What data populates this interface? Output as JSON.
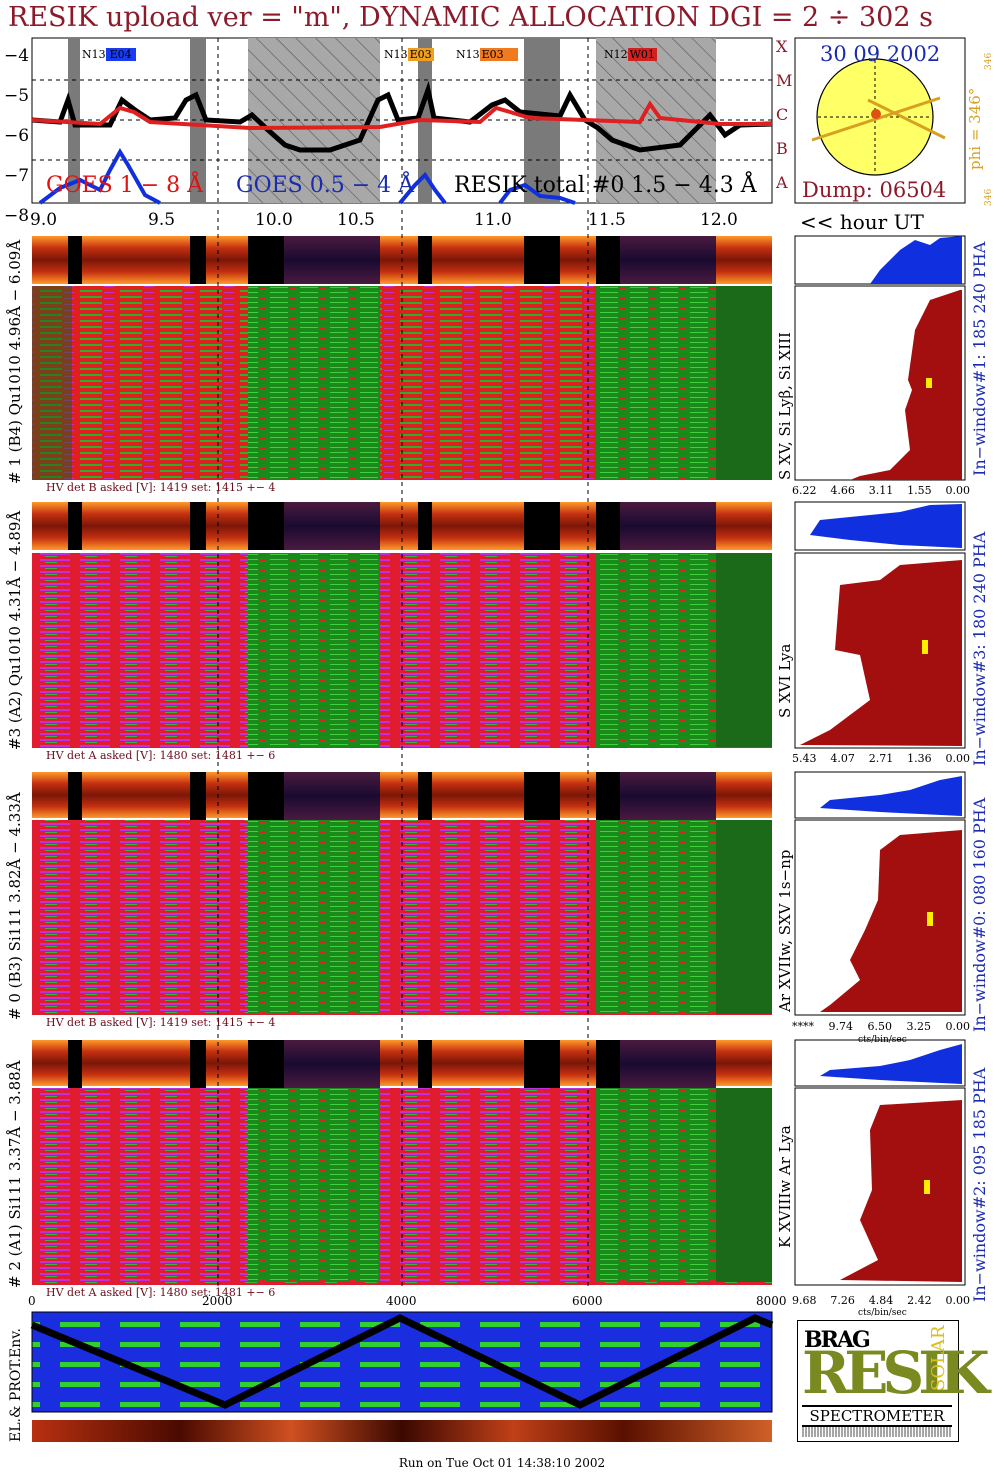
{
  "title": "RESIK upload ver = \"m\", DYNAMIC ALLOCATION  DGI =   2 ÷ 302 s",
  "colors": {
    "goes_long": "#e02020",
    "goes_short": "#1030e0",
    "resik_total": "#000000",
    "hist": "#a30f0f",
    "hist_blue": "#1030e0",
    "maroon": "#8b1a2b"
  },
  "lightcurve": {
    "yticks": [
      "−4",
      "−5",
      "−6",
      "−7",
      "−8"
    ],
    "class_letters": [
      "X",
      "M",
      "C",
      "B",
      "A"
    ],
    "legend_goes_long": "GOES 1 − 8 Å",
    "legend_goes_short": "GOES 0.5 − 4 Å",
    "legend_resik": "RESIK total #0   1.5 − 4.3 Å",
    "region_labels": [
      {
        "prefix": "N13",
        "suffix": "E04",
        "color": "#1a3cf0"
      },
      {
        "prefix": "N13",
        "suffix": "E03",
        "color": "#f0a020"
      },
      {
        "prefix": "N13",
        "suffix": "E03",
        "color": "#f07a20"
      },
      {
        "prefix": "N12",
        "suffix": "W01",
        "color": "#d02020"
      }
    ]
  },
  "time_axis": {
    "ticks": [
      "9.0",
      "9.5",
      "10.0",
      "10.5",
      "11.0",
      "11.5",
      "12.0"
    ],
    "unit_label": "<< hour UT"
  },
  "sun": {
    "date": "30 09 2002",
    "dump": "Dump: 06504",
    "phi_label": "phi = 346°",
    "phi_small": "346",
    "phi_small2": "346"
  },
  "panels": [
    {
      "left_label": "# 1 (B4) Qu1010  4.96Å − 6.09Å",
      "line_label": "S XV, Si Lyβ, Si XIII",
      "hv": "HV det B asked [V]:  1419 set:   1415  +−    4",
      "ticks": [
        "6.22",
        "4.66",
        "3.11",
        "1.55",
        "0.00"
      ],
      "window": "In−window#1:  185 240 PHA"
    },
    {
      "left_label": "#3 (A2) Qu1010  4.31Å − 4.89Å",
      "line_label": "S XVI Lya",
      "hv": "HV det A asked [V]:  1480 set:   1481  +−    6",
      "ticks": [
        "5.43",
        "4.07",
        "2.71",
        "1.36",
        "0.00"
      ],
      "window": "In−window#3:  180 240 PHA"
    },
    {
      "left_label": "# 0 (B3) Si111   3.82Å − 4.33Å",
      "line_label": "Ar XVIIw, SXV 1s−np",
      "hv": "HV det B asked [V]:  1419 set:   1415  +−    4",
      "ticks": [
        "****",
        "9.74",
        "6.50",
        "3.25",
        "0.00"
      ],
      "window": "In−window#0:  080 160 PHA"
    },
    {
      "left_label": "# 2 (A1) Si111   3.37Å − 3.88Å",
      "line_label": "K XVIIIw  Ar Lya",
      "hv": "HV det A asked [V]:  1480 set:   1481  +−    6",
      "ticks": [
        "9.68",
        "7.26",
        "4.84",
        "2.42",
        "0.00"
      ],
      "window": "In−window#2:  095 185 PHA"
    }
  ],
  "cts_label": "cts/bin/sec",
  "orbit": {
    "ticks": [
      "0",
      "2000",
      "4000",
      "6000",
      "8000"
    ],
    "label": "EL.& PROT.Env."
  },
  "logo": {
    "top_left": "BRAG",
    "main": "RESIK",
    "right": "SOLAR",
    "bottom": "SPECTROMETER"
  },
  "footer": "Run on Tue Oct 01 14:38:10 2002"
}
